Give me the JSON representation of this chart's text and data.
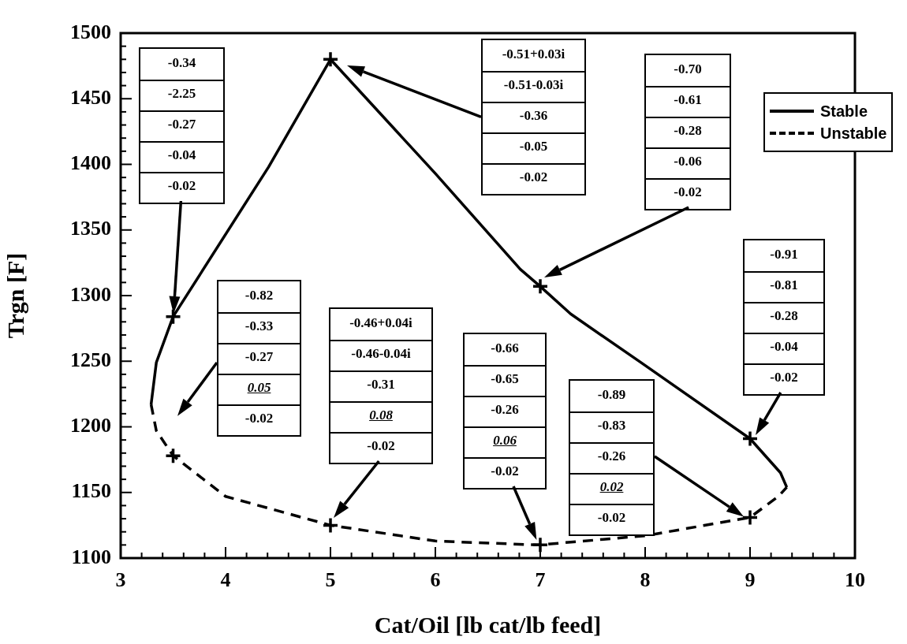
{
  "chart_data": {
    "type": "line",
    "xlabel": "Cat/Oil [lb cat/lb feed]",
    "ylabel": "Trgn [F]",
    "xlim": [
      3,
      10
    ],
    "ylim": [
      1100,
      1500
    ],
    "xticks": [
      3,
      {
        "value": 3.2,
        "label": null
      },
      {
        "value": 3.4,
        "label": null
      },
      {
        "value": 3.6,
        "label": null
      },
      {
        "value": 3.8,
        "label": null
      },
      4,
      {
        "value": 4.2,
        "label": null
      },
      {
        "value": 4.4,
        "label": null
      },
      {
        "value": 4.6,
        "label": null
      },
      {
        "value": 4.8,
        "label": null
      },
      5,
      {
        "value": 5.2,
        "label": null
      },
      {
        "value": 5.4,
        "label": null
      },
      {
        "value": 5.6,
        "label": null
      },
      {
        "value": 5.8,
        "label": null
      },
      6,
      {
        "value": 6.2,
        "label": null
      },
      {
        "value": 6.4,
        "label": null
      },
      {
        "value": 6.6,
        "label": null
      },
      {
        "value": 6.8,
        "label": null
      },
      7,
      {
        "value": 7.2,
        "label": null
      },
      {
        "value": 7.4,
        "label": null
      },
      {
        "value": 7.6,
        "label": null
      },
      {
        "value": 7.8,
        "label": null
      },
      8,
      {
        "value": 8.2,
        "label": null
      },
      {
        "value": 8.4,
        "label": null
      },
      {
        "value": 8.6,
        "label": null
      },
      {
        "value": 8.8,
        "label": null
      },
      9,
      {
        "value": 9.2,
        "label": null
      },
      {
        "value": 9.4,
        "label": null
      },
      {
        "value": 9.6,
        "label": null
      },
      {
        "value": 9.8,
        "label": null
      },
      10
    ],
    "yticks": [
      1100,
      {
        "value": 1110,
        "label": null
      },
      {
        "value": 1120,
        "label": null
      },
      {
        "value": 1130,
        "label": null
      },
      {
        "value": 1140,
        "label": null
      },
      1150,
      {
        "value": 1160,
        "label": null
      },
      {
        "value": 1170,
        "label": null
      },
      {
        "value": 1180,
        "label": null
      },
      {
        "value": 1190,
        "label": null
      },
      1200,
      {
        "value": 1210,
        "label": null
      },
      {
        "value": 1220,
        "label": null
      },
      {
        "value": 1230,
        "label": null
      },
      {
        "value": 1240,
        "label": null
      },
      1250,
      {
        "value": 1260,
        "label": null
      },
      {
        "value": 1270,
        "label": null
      },
      {
        "value": 1280,
        "label": null
      },
      {
        "value": 1290,
        "label": null
      },
      1300,
      {
        "value": 1310,
        "label": null
      },
      {
        "value": 1320,
        "label": null
      },
      {
        "value": 1330,
        "label": null
      },
      {
        "value": 1340,
        "label": null
      },
      1350,
      {
        "value": 1360,
        "label": null
      },
      {
        "value": 1370,
        "label": null
      },
      {
        "value": 1380,
        "label": null
      },
      {
        "value": 1390,
        "label": null
      },
      1400,
      {
        "value": 1410,
        "label": null
      },
      {
        "value": 1420,
        "label": null
      },
      {
        "value": 1430,
        "label": null
      },
      {
        "value": 1440,
        "label": null
      },
      1450,
      {
        "value": 1460,
        "label": null
      },
      {
        "value": 1470,
        "label": null
      },
      {
        "value": 1480,
        "label": null
      },
      {
        "value": 1490,
        "label": null
      },
      1500
    ],
    "legend": "top right",
    "marker": "none",
    "series": [
      {
        "name": "Stable",
        "color": "#000000",
        "line_style": "solid",
        "x": [
          3.29,
          3.34,
          3.5,
          4.41,
          5,
          6,
          6.81,
          7,
          7.29,
          7.96,
          9,
          9.29,
          9.35
        ],
        "values": [
          1217,
          1249,
          1284,
          1398,
          1480,
          1393,
          1320,
          1307,
          1286,
          1249,
          1191,
          1165,
          1154
        ]
      },
      {
        "name": "Unstable",
        "color": "#000000",
        "line_style": "dashed",
        "x": [
          3.29,
          3.34,
          3.5,
          4,
          5,
          6,
          6.98,
          8,
          9,
          9.27,
          9.35
        ],
        "values": [
          1217,
          1197,
          1178,
          1147,
          1125,
          1113,
          1110,
          1117,
          1131,
          1147,
          1154
        ]
      },
      {
        "type": "scatter",
        "marker": "cross",
        "color": "#000000",
        "x": [
          3.5,
          5,
          7,
          9,
          3.5,
          5,
          7,
          9
        ],
        "values": [
          1284,
          1480,
          1307,
          1191,
          1178,
          1125,
          1110,
          1131
        ]
      }
    ],
    "annotations": [
      "-0.34\n-2.25\n-0.27\n-0.04\n-0.02",
      "-0.82\n-0.33\n-0.27\n0.05\n-0.02",
      "-0.51+0.03i\n-0.51-0.03i\n-0.36\n-0.05\n-0.02",
      "-0.46+0.04i\n-0.46-0.04i\n-0.31\n0.08\n-0.02",
      "-0.70\n-0.61\n-0.28\n-0.06\n-0.02",
      "-0.66\n-0.65\n-0.26\n0.06\n-0.02",
      "-0.91\n-0.81\n-0.28\n-0.04\n-0.02",
      "-0.89\n-0.83\n-0.26\n0.02\n-0.02"
    ]
  }
}
